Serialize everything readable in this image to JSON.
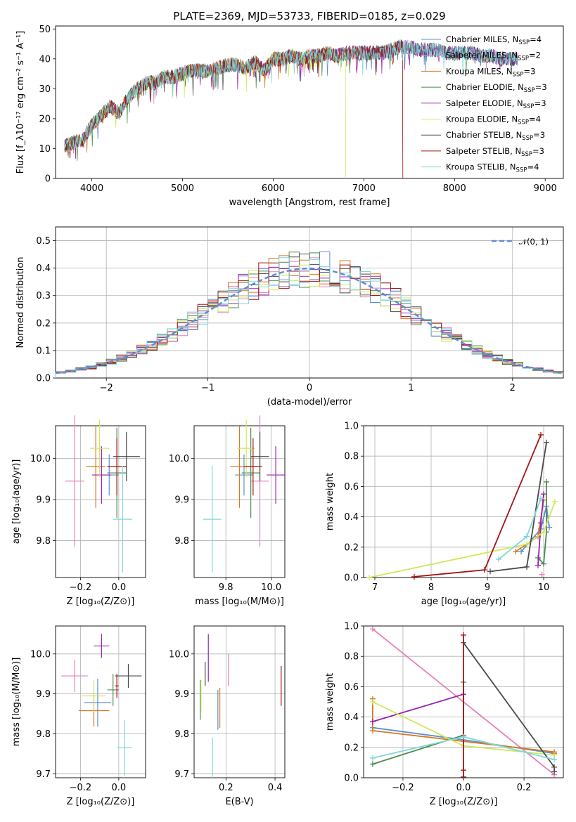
{
  "page": {
    "title": "PLATE=2369, MJD=53733, FIBERID=0185, z=0.029"
  },
  "models": [
    {
      "name": "Chabrier MILES",
      "imf": "Chabrier",
      "lib": "MILES",
      "nssp": 4,
      "color": "#5b8fd6"
    },
    {
      "name": "Salpeter MILES",
      "imf": "Salpeter",
      "lib": "MILES",
      "nssp": 2,
      "color": "#e57fb8"
    },
    {
      "name": "Kroupa MILES",
      "imf": "Kroupa",
      "lib": "MILES",
      "nssp": 3,
      "color": "#d9781f"
    },
    {
      "name": "Chabrier ELODIE",
      "imf": "Chabrier",
      "lib": "ELODIE",
      "nssp": 3,
      "color": "#4f8a4f"
    },
    {
      "name": "Salpeter ELODIE",
      "imf": "Salpeter",
      "lib": "ELODIE",
      "nssp": 3,
      "color": "#9b22b0"
    },
    {
      "name": "Kroupa ELODIE",
      "imf": "Kroupa",
      "lib": "ELODIE",
      "nssp": 4,
      "color": "#cfe85a"
    },
    {
      "name": "Chabrier STELIB",
      "imf": "Chabrier",
      "lib": "STELIB",
      "nssp": 3,
      "color": "#4a4a4a"
    },
    {
      "name": "Salpeter STELIB",
      "imf": "Salpeter",
      "lib": "STELIB",
      "nssp": 3,
      "color": "#a31515"
    },
    {
      "name": "Kroupa STELIB",
      "imf": "Kroupa",
      "lib": "STELIB",
      "nssp": 4,
      "color": "#7fd8d8"
    }
  ],
  "chart_data": [
    {
      "id": "spectrum",
      "type": "line",
      "title": "PLATE=2369, MJD=53733, FIBERID=0185, z=0.029",
      "xlabel": "wavelength [Angstrom, rest frame]",
      "ylabel": "Flux [f_λ10⁻¹⁷ erg cm⁻² s⁻¹ A⁻¹]",
      "xlim": [
        3600,
        9200
      ],
      "ylim": [
        0,
        51
      ],
      "xticks": [
        "4000",
        "5000",
        "6000",
        "7000",
        "8000",
        "9000"
      ],
      "yticks": [
        "0",
        "10",
        "20",
        "30",
        "40",
        "50"
      ],
      "x": [
        3700,
        3800,
        3900,
        4000,
        4100,
        4200,
        4300,
        4400,
        4500,
        4600,
        4700,
        4800,
        4900,
        5000,
        5100,
        5200,
        5300,
        5400,
        5500,
        5600,
        5700,
        5800,
        5900,
        6000,
        6100,
        6200,
        6300,
        6400,
        6500,
        6600,
        6700,
        6800,
        6900,
        7000,
        7100,
        7200,
        7300,
        7400,
        7500,
        7600,
        7700,
        7800,
        7900,
        8000,
        8100,
        8200,
        8300,
        8400,
        8500,
        8600,
        8700
      ],
      "y": [
        11,
        12,
        13,
        18,
        21,
        24,
        22,
        27,
        30,
        32,
        32,
        34,
        34,
        35,
        36,
        36,
        36,
        37,
        38,
        38,
        37,
        39,
        36,
        40,
        40,
        41,
        40,
        41,
        41,
        42,
        41,
        42,
        42,
        42,
        42,
        42,
        43,
        44,
        44,
        43,
        43,
        43,
        42,
        42,
        42,
        42,
        41,
        41,
        40,
        40,
        40
      ],
      "legend_location": "upper right",
      "grid": false
    },
    {
      "id": "residuals",
      "type": "histogram",
      "xlabel": "(data-model)/error",
      "ylabel": "Normed distribution",
      "xlim": [
        -2.5,
        2.5
      ],
      "ylim": [
        0,
        0.55
      ],
      "xticks": [
        "−2",
        "−1",
        "0",
        "1",
        "2"
      ],
      "yticks": [
        "0.0",
        "0.1",
        "0.2",
        "0.3",
        "0.4",
        "0.5"
      ],
      "reference": {
        "label": "𝒩(0, 1)",
        "color": "#5b8fd6"
      },
      "bin_width": 0.1,
      "legend_location": "upper right",
      "grid": true
    },
    {
      "id": "age_vs_Z",
      "type": "scatter",
      "xlabel": "Z [log₁₀(Z/Z⊙)]",
      "ylabel": "age  [log₁₀(age/yr)]",
      "xlim": [
        -0.33,
        0.14
      ],
      "ylim": [
        9.71,
        10.08
      ],
      "xticks": [
        "−0.2",
        "0.0"
      ],
      "yticks": [
        "9.8",
        "9.9",
        "10.0"
      ],
      "points": [
        {
          "x": -0.05,
          "y": 9.96,
          "xerr": 0.05,
          "yerr": 0.05
        },
        {
          "x": -0.23,
          "y": 9.945,
          "xerr": 0.05,
          "yerr": 0.16
        },
        {
          "x": -0.12,
          "y": 9.98,
          "xerr": 0.05,
          "yerr": 0.1
        },
        {
          "x": -0.01,
          "y": 9.965,
          "xerr": 0.05,
          "yerr": 0.11
        },
        {
          "x": -0.09,
          "y": 9.96,
          "xerr": 0.05,
          "yerr": 0.07
        },
        {
          "x": -0.1,
          "y": 10.025,
          "xerr": 0.05,
          "yerr": 0.07
        },
        {
          "x": 0.04,
          "y": 10.005,
          "xerr": 0.07,
          "yerr": 0.06
        },
        {
          "x": -0.01,
          "y": 9.98,
          "xerr": 0.05,
          "yerr": 0.07
        },
        {
          "x": 0.02,
          "y": 9.852,
          "xerr": 0.05,
          "yerr": 0.13
        }
      ],
      "grid": true
    },
    {
      "id": "age_vs_mass",
      "type": "scatter",
      "xlabel": "mass [log₁₀(M/M⊙)]",
      "ylabel": "",
      "xlim": [
        9.66,
        10.06
      ],
      "ylim": [
        9.71,
        10.08
      ],
      "xticks": [
        "9.8",
        "10.0"
      ],
      "yticks": [
        "9.8",
        "9.9",
        "10.0"
      ],
      "points": [
        {
          "x": 9.88,
          "y": 9.96,
          "xerr": 0.04,
          "yerr": 0.05
        },
        {
          "x": 9.95,
          "y": 9.945,
          "xerr": 0.04,
          "yerr": 0.16
        },
        {
          "x": 9.86,
          "y": 9.98,
          "xerr": 0.04,
          "yerr": 0.1
        },
        {
          "x": 9.91,
          "y": 9.965,
          "xerr": 0.04,
          "yerr": 0.11
        },
        {
          "x": 10.02,
          "y": 9.96,
          "xerr": 0.04,
          "yerr": 0.07
        },
        {
          "x": 9.89,
          "y": 10.025,
          "xerr": 0.04,
          "yerr": 0.07
        },
        {
          "x": 9.95,
          "y": 10.005,
          "xerr": 0.04,
          "yerr": 0.06
        },
        {
          "x": 9.92,
          "y": 9.98,
          "xerr": 0.04,
          "yerr": 0.07
        },
        {
          "x": 9.74,
          "y": 9.852,
          "xerr": 0.04,
          "yerr": 0.13
        }
      ],
      "grid": true
    },
    {
      "id": "mass_weight_vs_age",
      "type": "line",
      "xlabel": "age  [log₁₀(age/yr)]",
      "ylabel": "mass weight",
      "xlim": [
        6.8,
        10.35
      ],
      "ylim": [
        0,
        1
      ],
      "xticks": [
        "7",
        "8",
        "9",
        "10"
      ],
      "yticks": [
        "0.0",
        "0.2",
        "0.4",
        "0.6",
        "0.8",
        "1.0"
      ],
      "series": [
        {
          "x": [
            9.6,
            9.95,
            10.05,
            10.1
          ],
          "y": [
            0.17,
            0.32,
            0.47,
            0.33
          ]
        },
        {
          "x": 9.97,
          "y": 0.02,
          "note": ""
        },
        {
          "x": [
            9.5,
            9.9,
            10.0
          ],
          "y": [
            0.17,
            0.27,
            0.51
          ]
        },
        {
          "x": [
            9.9,
            10.0,
            10.05,
            10.05
          ],
          "y": [
            0.13,
            0.09,
            0.3,
            0.63
          ]
        },
        {
          "x": [
            9.9,
            9.95,
            10.0
          ],
          "y": [
            0.08,
            0.36,
            0.55
          ]
        },
        {
          "x": [
            6.9,
            9.7,
            10.0,
            10.2
          ],
          "y": [
            0.0,
            0.22,
            0.3,
            0.5
          ]
        },
        {
          "x": [
            9.05,
            9.7,
            10.05
          ],
          "y": [
            0.04,
            0.07,
            0.89
          ]
        },
        {
          "x": [
            7.7,
            8.95,
            9.95
          ],
          "y": [
            0.005,
            0.05,
            0.94
          ]
        },
        {
          "x": [
            9.2,
            9.7,
            9.95
          ],
          "y": [
            0.12,
            0.27,
            0.52
          ]
        }
      ],
      "grid": true
    },
    {
      "id": "mass_vs_Z",
      "type": "scatter",
      "xlabel": "Z [log₁₀(Z/Z⊙)]",
      "ylabel": "mass [log₁₀(M/M⊙)]",
      "xlim": [
        -0.33,
        0.14
      ],
      "ylim": [
        9.69,
        10.07
      ],
      "xticks": [
        "−0.2",
        "0.0"
      ],
      "yticks": [
        "9.7",
        "9.8",
        "9.9",
        "10.0"
      ],
      "points": [
        {
          "x": -0.11,
          "y": 9.878,
          "xerr": 0.07,
          "yerr": 0.06
        },
        {
          "x": -0.23,
          "y": 9.945,
          "xerr": 0.07,
          "yerr": 0.04
        },
        {
          "x": -0.13,
          "y": 9.858,
          "xerr": 0.08,
          "yerr": 0.04
        },
        {
          "x": -0.03,
          "y": 9.91,
          "xerr": 0.03,
          "yerr": 0.04
        },
        {
          "x": -0.09,
          "y": 10.02,
          "xerr": 0.04,
          "yerr": 0.03
        },
        {
          "x": -0.13,
          "y": 9.895,
          "xerr": 0.06,
          "yerr": 0.04
        },
        {
          "x": 0.05,
          "y": 9.945,
          "xerr": 0.07,
          "yerr": 0.03
        },
        {
          "x": -0.01,
          "y": 9.92,
          "xerr": 0.01,
          "yerr": 0.03
        },
        {
          "x": 0.03,
          "y": 9.765,
          "xerr": 0.04,
          "yerr": 0.07
        }
      ],
      "grid": true
    },
    {
      "id": "mass_vs_ebv",
      "type": "scatter",
      "xlabel": "E(B-V)",
      "ylabel": "",
      "xlim": [
        0.07,
        0.44
      ],
      "ylim": [
        9.69,
        10.07
      ],
      "xticks": [
        "0.2",
        "0.4"
      ],
      "yticks": [
        "9.7",
        "9.8",
        "9.9",
        "10.0"
      ],
      "points": [
        {
          "x": 0.167,
          "y": 9.86,
          "yerr": 0.05
        },
        {
          "x": 0.21,
          "y": 9.96,
          "yerr": 0.04
        },
        {
          "x": 0.175,
          "y": 9.865,
          "yerr": 0.05
        },
        {
          "x": 0.095,
          "y": 9.885,
          "yerr": 0.05
        },
        {
          "x": 0.128,
          "y": 9.99,
          "yerr": 0.06
        },
        {
          "x": 0.098,
          "y": 9.895,
          "yerr": 0.04
        },
        {
          "x": 0.115,
          "y": 9.95,
          "yerr": 0.03
        },
        {
          "x": 0.425,
          "y": 9.92,
          "yerr": 0.05
        },
        {
          "x": 0.145,
          "y": 9.74,
          "yerr": 0.05
        }
      ],
      "grid": true
    },
    {
      "id": "mass_weight_vs_Z",
      "type": "line",
      "xlabel": "Z [log₁₀(Z/Z⊙)]",
      "ylabel": "mass weight",
      "xlim": [
        -0.33,
        0.33
      ],
      "ylim": [
        0,
        1
      ],
      "xticks": [
        "−0.2",
        "0.0",
        "0.2"
      ],
      "yticks": [
        "0.0",
        "0.2",
        "0.4",
        "0.6",
        "0.8",
        "1.0"
      ],
      "series": [
        {
          "x": [
            -0.3,
            0.0,
            0.3
          ],
          "y": [
            0.33,
            0.25,
            0.16
          ]
        },
        {
          "x": [
            -0.3,
            0.3
          ],
          "y": [
            0.98,
            0.02
          ]
        },
        {
          "x": [
            -0.3,
            -0.3,
            0.3,
            0.3
          ],
          "y": [
            0.52,
            0.31,
            0.17,
            0.16
          ]
        },
        {
          "x": [
            -0.3,
            0.0,
            0.0
          ],
          "y": [
            0.09,
            0.28,
            0.63
          ]
        },
        {
          "x": [
            -0.3,
            0.0
          ],
          "y": [
            0.37,
            0.55
          ]
        },
        {
          "x": [
            -0.3,
            0.0,
            0.3
          ],
          "y": [
            0.5,
            0.21,
            0.15
          ]
        },
        {
          "x": [
            0.0,
            0.3,
            0.3
          ],
          "y": [
            0.89,
            0.07,
            0.04
          ]
        },
        {
          "x": [
            0.0,
            0.0,
            0.0
          ],
          "y": [
            0.005,
            0.05,
            0.94
          ]
        },
        {
          "x": [
            -0.3,
            0.0,
            0.3
          ],
          "y": [
            0.13,
            0.27,
            0.12
          ]
        }
      ],
      "grid": true
    }
  ]
}
